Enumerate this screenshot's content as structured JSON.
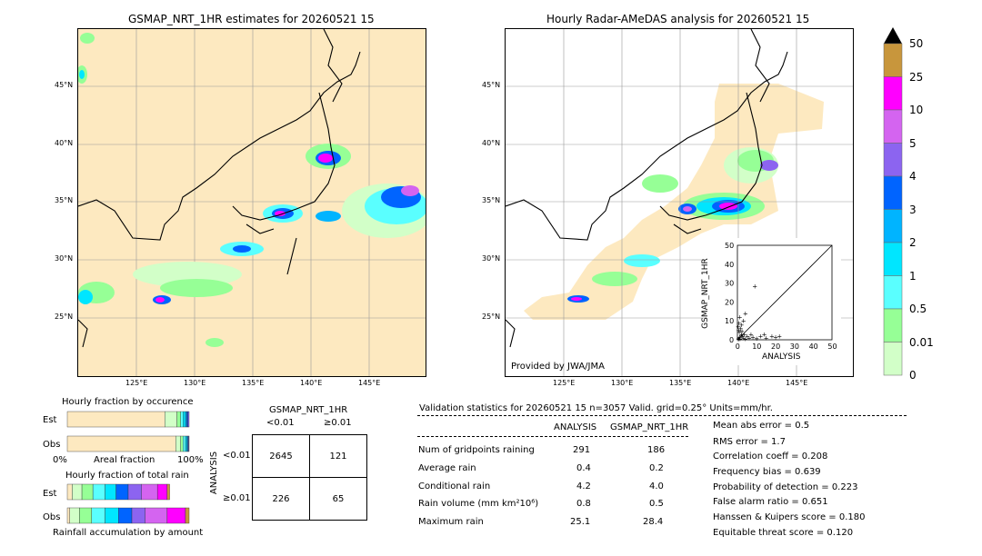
{
  "left_map": {
    "title": "GSMAP_NRT_1HR estimates for 20260521 15",
    "lat_ticks": [
      "45°N",
      "40°N",
      "35°N",
      "30°N",
      "25°N"
    ],
    "lon_ticks": [
      "125°E",
      "130°E",
      "135°E",
      "140°E",
      "145°E"
    ]
  },
  "right_map": {
    "title": "Hourly Radar-AMeDAS analysis for 20260521 15",
    "lat_ticks": [
      "45°N",
      "40°N",
      "35°N",
      "30°N",
      "25°N"
    ],
    "lon_ticks": [
      "125°E",
      "130°E",
      "135°E",
      "140°E",
      "145°E"
    ],
    "credit": "Provided by JWA/JMA"
  },
  "colorbar": {
    "labels": [
      "50",
      "25",
      "10",
      "5",
      "4",
      "3",
      "2",
      "1",
      "0.5",
      "0.01",
      "0"
    ],
    "colors": [
      "#c8963c",
      "#ff00ff",
      "#d464f0",
      "#8c64f0",
      "#0064ff",
      "#00b4ff",
      "#00e6ff",
      "#5affff",
      "#96ff96",
      "#d2ffc8",
      "#fde9c0"
    ]
  },
  "chart_data": [
    {
      "type": "scatter",
      "title": "",
      "xlabel": "ANALYSIS",
      "ylabel": "GSMAP_NRT_1HR",
      "xlim": [
        0,
        50
      ],
      "ylim": [
        0,
        50
      ],
      "x_ticks": [
        "0",
        "10",
        "20",
        "30",
        "40",
        "50"
      ],
      "y_ticks": [
        "0",
        "10",
        "20",
        "30",
        "40",
        "50"
      ],
      "diagonal": true,
      "points": [
        [
          0.3,
          0.2
        ],
        [
          0.5,
          0.8
        ],
        [
          1,
          1.5
        ],
        [
          1.2,
          0.4
        ],
        [
          2,
          3
        ],
        [
          0.8,
          4
        ],
        [
          1.5,
          6
        ],
        [
          2.5,
          2
        ],
        [
          3,
          1
        ],
        [
          4,
          0.5
        ],
        [
          5,
          2
        ],
        [
          6,
          1
        ],
        [
          7,
          3
        ],
        [
          8,
          1.5
        ],
        [
          10,
          0.8
        ],
        [
          12,
          2
        ],
        [
          14,
          3
        ],
        [
          15,
          1
        ],
        [
          18,
          2
        ],
        [
          20,
          1.5
        ],
        [
          22,
          2
        ],
        [
          2,
          8
        ],
        [
          3,
          10
        ],
        [
          1,
          12
        ],
        [
          0.5,
          5
        ],
        [
          2.2,
          4.5
        ],
        [
          1.8,
          2.2
        ],
        [
          3.5,
          2.8
        ],
        [
          9,
          28.4
        ],
        [
          4,
          14
        ],
        [
          0.2,
          7
        ],
        [
          0.6,
          9
        ]
      ]
    },
    {
      "type": "bar",
      "title": "Hourly fraction by occurence",
      "categories": [
        "Est",
        "Obs"
      ],
      "xlabel": "Areal fraction",
      "x_ticks": [
        "0%",
        "100%"
      ],
      "series": [
        {
          "values": [
            0.8,
            0.89
          ]
        },
        {
          "values": [
            0.1,
            0.04
          ]
        },
        {
          "values": [
            0.03,
            0.02
          ]
        },
        {
          "values": [
            0.02,
            0.02
          ]
        },
        {
          "values": [
            0.02,
            0.01
          ]
        },
        {
          "values": [
            0.01,
            0.01
          ]
        },
        {
          "values": [
            0.01,
            0.005
          ]
        },
        {
          "values": [
            0.01,
            0.005
          ]
        }
      ]
    },
    {
      "type": "bar",
      "title": "Hourly fraction of total rain",
      "categories": [
        "Est",
        "Obs"
      ],
      "xlabel": "Rainfall accumulation by amount",
      "series": [
        {
          "values": [
            0.04,
            0.02
          ]
        },
        {
          "values": [
            0.08,
            0.08
          ]
        },
        {
          "values": [
            0.09,
            0.1
          ]
        },
        {
          "values": [
            0.1,
            0.11
          ]
        },
        {
          "values": [
            0.09,
            0.11
          ]
        },
        {
          "values": [
            0.1,
            0.11
          ]
        },
        {
          "values": [
            0.11,
            0.11
          ]
        },
        {
          "values": [
            0.13,
            0.18
          ]
        },
        {
          "values": [
            0.08,
            0.15
          ]
        },
        {
          "values": [
            0.02,
            0.03
          ]
        }
      ]
    }
  ],
  "contingency": {
    "title": "GSMAP_NRT_1HR",
    "col_headers": [
      "<0.01",
      "≥0.01"
    ],
    "row_axis_label": "ANALYSIS",
    "row_headers": [
      "<0.01",
      "≥0.01"
    ],
    "cells": [
      [
        "2645",
        "121"
      ],
      [
        "226",
        "65"
      ]
    ]
  },
  "validation": {
    "header": "Validation statistics for 20260521 15  n=3057 Valid. grid=0.25° Units=mm/hr.",
    "col_headers": [
      "ANALYSIS",
      "GSMAP_NRT_1HR"
    ],
    "rows": [
      {
        "label": "Num of gridpoints raining",
        "analysis": "291",
        "gsmap": "186"
      },
      {
        "label": "Average rain",
        "analysis": "0.4",
        "gsmap": "0.2"
      },
      {
        "label": "Conditional rain",
        "analysis": "4.2",
        "gsmap": "4.0"
      },
      {
        "label": "Rain volume (mm km²10⁶)",
        "analysis": "0.8",
        "gsmap": "0.5"
      },
      {
        "label": "Maximum rain",
        "analysis": "25.1",
        "gsmap": "28.4"
      }
    ],
    "scores": [
      "Mean abs error =    0.5",
      "RMS error =    1.7",
      "Correlation coeff =  0.208",
      "Frequency bias =  0.639",
      "Probability of detection =  0.223",
      "False alarm ratio =  0.651",
      "Hanssen & Kuipers score =  0.180",
      "Equitable threat score =  0.120"
    ]
  }
}
